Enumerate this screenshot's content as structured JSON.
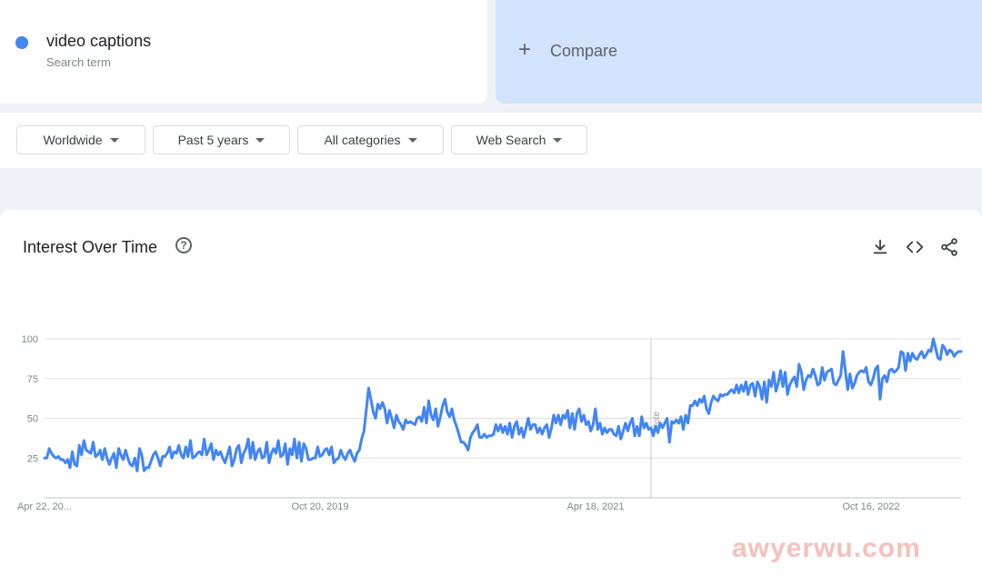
{
  "search_term": {
    "name": "video captions",
    "sub": "Search term",
    "color": "#4285f4"
  },
  "compare": {
    "plus": "+",
    "label": "Compare"
  },
  "filters": [
    {
      "label": "Worldwide"
    },
    {
      "label": "Past 5 years"
    },
    {
      "label": "All categories"
    },
    {
      "label": "Web Search"
    }
  ],
  "chart_card": {
    "title": "Interest Over Time",
    "help_icon": "help-circle-icon",
    "tools": [
      "download-icon",
      "embed-code-icon",
      "share-icon"
    ]
  },
  "chart_data": {
    "type": "line",
    "series": [
      {
        "color": "#4285f4",
        "values": [
          25,
          25,
          31,
          28,
          26,
          25,
          26,
          24,
          24,
          22,
          24,
          19,
          29,
          21,
          20,
          33,
          27,
          36,
          30,
          29,
          28,
          35,
          26,
          27,
          30,
          24,
          31,
          25,
          21,
          25,
          28,
          19,
          31,
          27,
          24,
          30,
          25,
          21,
          20,
          25,
          17,
          31,
          27,
          17,
          19,
          19,
          23,
          27,
          29,
          25,
          20,
          26,
          26,
          28,
          32,
          25,
          29,
          28,
          33,
          27,
          25,
          32,
          26,
          36,
          25,
          26,
          28,
          29,
          27,
          37,
          27,
          30,
          34,
          24,
          30,
          27,
          29,
          25,
          22,
          27,
          32,
          20,
          24,
          31,
          33,
          22,
          28,
          31,
          37,
          25,
          35,
          24,
          29,
          31,
          25,
          26,
          35,
          22,
          28,
          31,
          28,
          36,
          26,
          27,
          34,
          21,
          31,
          27,
          37,
          25,
          35,
          23,
          34,
          31,
          24,
          24,
          25,
          25,
          32,
          26,
          27,
          30,
          31,
          27,
          32,
          22,
          24,
          25,
          30,
          26,
          24,
          28,
          30,
          26,
          23,
          28,
          30,
          37,
          42,
          55,
          69,
          62,
          54,
          50,
          59,
          56,
          60,
          56,
          47,
          55,
          50,
          44,
          52,
          48,
          46,
          43,
          49,
          47,
          48,
          47,
          46,
          50,
          51,
          48,
          57,
          47,
          61,
          52,
          49,
          56,
          45,
          51,
          58,
          62,
          54,
          51,
          56,
          49,
          45,
          40,
          35,
          35,
          33,
          30,
          38,
          41,
          43,
          46,
          38,
          38,
          40,
          38,
          39,
          39,
          40,
          46,
          42,
          46,
          41,
          45,
          40,
          47,
          38,
          45,
          48,
          40,
          44,
          38,
          44,
          50,
          43,
          46,
          46,
          41,
          44,
          40,
          44,
          46,
          38,
          44,
          52,
          47,
          52,
          46,
          52,
          50,
          55,
          44,
          53,
          43,
          53,
          56,
          48,
          52,
          46,
          48,
          42,
          46,
          56,
          43,
          47,
          40,
          44,
          41,
          43,
          43,
          40,
          39,
          45,
          37,
          42,
          47,
          42,
          47,
          50,
          39,
          45,
          39,
          51,
          44,
          47,
          43,
          44,
          39,
          45,
          41,
          47,
          44,
          47,
          50,
          35,
          48,
          47,
          49,
          47,
          51,
          43,
          52,
          47,
          58,
          58,
          61,
          58,
          62,
          60,
          64,
          56,
          53,
          60,
          64,
          62,
          61,
          65,
          64,
          65,
          65,
          67,
          68,
          66,
          71,
          66,
          71,
          67,
          73,
          65,
          71,
          72,
          64,
          73,
          70,
          62,
          73,
          60,
          74,
          70,
          79,
          67,
          72,
          80,
          70,
          79,
          65,
          71,
          74,
          76,
          70,
          84,
          79,
          68,
          74,
          77,
          76,
          81,
          77,
          71,
          72,
          82,
          74,
          79,
          80,
          81,
          72,
          71,
          74,
          77,
          92,
          80,
          68,
          78,
          69,
          72,
          77,
          79,
          80,
          79,
          82,
          73,
          71,
          75,
          81,
          83,
          62,
          75,
          77,
          73,
          80,
          81,
          79,
          80,
          82,
          92,
          91,
          80,
          91,
          86,
          91,
          88,
          87,
          90,
          92,
          88,
          90,
          93,
          92,
          100,
          94,
          88,
          87,
          96,
          94,
          90,
          93,
          92,
          89,
          91,
          92,
          92
        ]
      }
    ],
    "x_ticks": [
      "Apr 22, 20...",
      "Oct 20, 2019",
      "Apr 18, 2021",
      "Oct 16, 2022"
    ],
    "y_ticks": [
      25,
      50,
      75,
      100
    ],
    "ylim": [
      0,
      100
    ],
    "annotation": {
      "label": "Note",
      "index": 262
    },
    "grid": true,
    "legend": "none"
  },
  "watermark": "awyerwu.com"
}
